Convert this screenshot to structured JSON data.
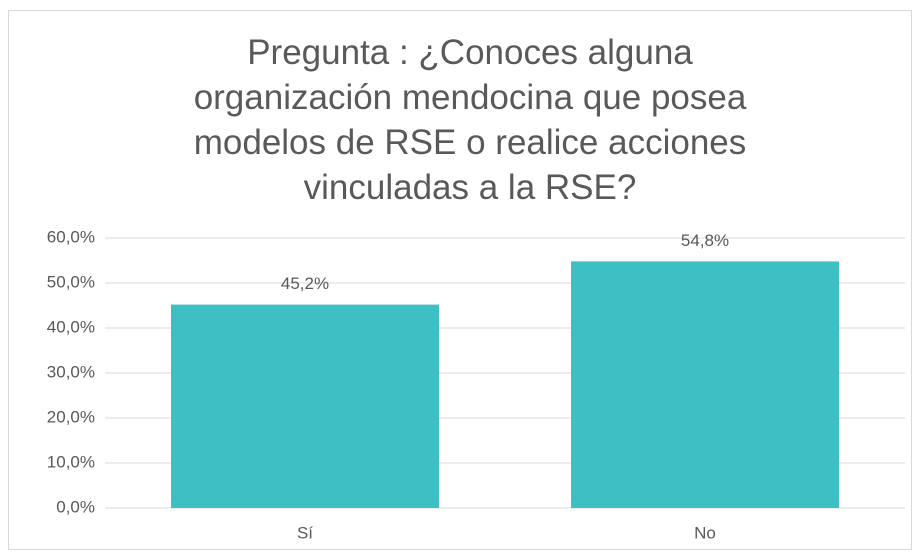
{
  "chart_data": {
    "type": "bar",
    "title": "Pregunta : ¿Conoces alguna organización mendocina que posea modelos de RSE o realice acciones vinculadas a la RSE?",
    "categories": [
      "Sí",
      "No"
    ],
    "values": [
      45.2,
      54.8
    ],
    "value_labels": [
      "45,2%",
      "54,8%"
    ],
    "color": "#3dbfc3",
    "ylim": [
      0,
      60
    ],
    "yticks": [
      {
        "value": 0,
        "label": "0,0%"
      },
      {
        "value": 10,
        "label": "10,0%"
      },
      {
        "value": 20,
        "label": "20,0%"
      },
      {
        "value": 30,
        "label": "30,0%"
      },
      {
        "value": 40,
        "label": "40,0%"
      },
      {
        "value": 50,
        "label": "50,0%"
      },
      {
        "value": 60,
        "label": "60,0%"
      }
    ],
    "grid": true
  }
}
